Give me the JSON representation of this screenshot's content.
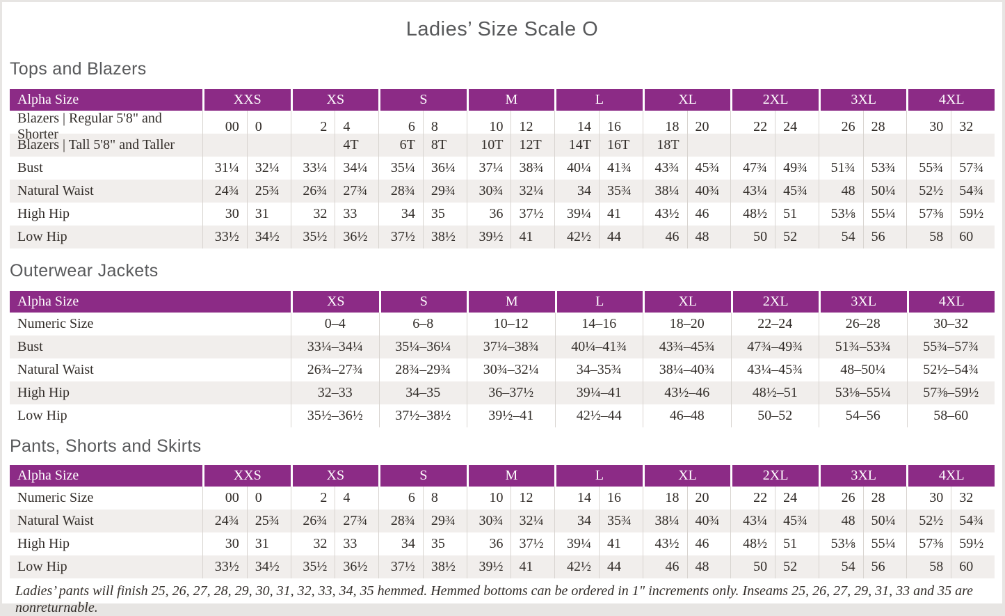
{
  "page": {
    "title": "Ladies’ Size Scale O",
    "footnote": "Ladies’ pants will finish 25, 26, 27, 28, 29, 30, 31, 32, 33, 34, 35 hemmed. Hemmed bottoms can be ordered in 1\" increments only. Inseams 25, 26, 27, 29, 31, 33 and 35 are nonreturnable."
  },
  "colors": {
    "purple": "#8c2b86",
    "stripe": "#f1eeec",
    "line": "#d8d4d0",
    "text": "#332e2a",
    "heading": "#58595b"
  },
  "tables": [
    {
      "section_title": "Tops and Blazers",
      "header_label": "Alpha Size",
      "paired": true,
      "sizes": [
        "XXS",
        "XS",
        "S",
        "M",
        "L",
        "XL",
        "2XL",
        "3XL",
        "4XL"
      ],
      "rows": [
        {
          "label": "Blazers | Regular 5'8\" and Shorter",
          "values": [
            [
              "00",
              "0"
            ],
            [
              "2",
              "4"
            ],
            [
              "6",
              "8"
            ],
            [
              "10",
              "12"
            ],
            [
              "14",
              "16"
            ],
            [
              "18",
              "20"
            ],
            [
              "22",
              "24"
            ],
            [
              "26",
              "28"
            ],
            [
              "30",
              "32"
            ]
          ]
        },
        {
          "label": "Blazers | Tall 5'8\" and Taller",
          "values": [
            [
              "",
              ""
            ],
            [
              "",
              "4T"
            ],
            [
              "6T",
              "8T"
            ],
            [
              "10T",
              "12T"
            ],
            [
              "14T",
              "16T"
            ],
            [
              "18T",
              ""
            ],
            [
              "",
              ""
            ],
            [
              "",
              ""
            ],
            [
              "",
              ""
            ]
          ]
        },
        {
          "label": "Bust",
          "values": [
            [
              "31¼",
              "32¼"
            ],
            [
              "33¼",
              "34¼"
            ],
            [
              "35¼",
              "36¼"
            ],
            [
              "37¼",
              "38¾"
            ],
            [
              "40¼",
              "41¾"
            ],
            [
              "43¾",
              "45¾"
            ],
            [
              "47¾",
              "49¾"
            ],
            [
              "51¾",
              "53¾"
            ],
            [
              "55¾",
              "57¾"
            ]
          ]
        },
        {
          "label": "Natural Waist",
          "values": [
            [
              "24¾",
              "25¾"
            ],
            [
              "26¾",
              "27¾"
            ],
            [
              "28¾",
              "29¾"
            ],
            [
              "30¾",
              "32¼"
            ],
            [
              "34",
              "35¾"
            ],
            [
              "38¼",
              "40¾"
            ],
            [
              "43¼",
              "45¾"
            ],
            [
              "48",
              "50¼"
            ],
            [
              "52½",
              "54¾"
            ]
          ]
        },
        {
          "label": "High Hip",
          "values": [
            [
              "30",
              "31"
            ],
            [
              "32",
              "33"
            ],
            [
              "34",
              "35"
            ],
            [
              "36",
              "37½"
            ],
            [
              "39¼",
              "41"
            ],
            [
              "43½",
              "46"
            ],
            [
              "48½",
              "51"
            ],
            [
              "53⅛",
              "55¼"
            ],
            [
              "57⅜",
              "59½"
            ]
          ]
        },
        {
          "label": "Low Hip",
          "values": [
            [
              "33½",
              "34½"
            ],
            [
              "35½",
              "36½"
            ],
            [
              "37½",
              "38½"
            ],
            [
              "39½",
              "41"
            ],
            [
              "42½",
              "44"
            ],
            [
              "46",
              "48"
            ],
            [
              "50",
              "52"
            ],
            [
              "54",
              "56"
            ],
            [
              "58",
              "60"
            ]
          ]
        }
      ]
    },
    {
      "section_title": "Outerwear Jackets",
      "header_label": "Alpha Size",
      "paired": false,
      "sizes": [
        "XS",
        "S",
        "M",
        "L",
        "XL",
        "2XL",
        "3XL",
        "4XL"
      ],
      "rows": [
        {
          "label": "Numeric Size",
          "values": [
            "0–4",
            "6–8",
            "10–12",
            "14–16",
            "18–20",
            "22–24",
            "26–28",
            "30–32"
          ]
        },
        {
          "label": "Bust",
          "values": [
            "33¼–34¼",
            "35¼–36¼",
            "37¼–38¾",
            "40¼–41¾",
            "43¾–45¾",
            "47¾–49¾",
            "51¾–53¾",
            "55¾–57¾"
          ]
        },
        {
          "label": "Natural Waist",
          "values": [
            "26¾–27¾",
            "28¾–29¾",
            "30¾–32¼",
            "34–35¾",
            "38¼–40¾",
            "43¼–45¾",
            "48–50¼",
            "52½–54¾"
          ]
        },
        {
          "label": "High Hip",
          "values": [
            "32–33",
            "34–35",
            "36–37½",
            "39¼–41",
            "43½–46",
            "48½–51",
            "53⅛–55¼",
            "57⅜–59½"
          ]
        },
        {
          "label": "Low Hip",
          "values": [
            "35½–36½",
            "37½–38½",
            "39½–41",
            "42½–44",
            "46–48",
            "50–52",
            "54–56",
            "58–60"
          ]
        }
      ]
    },
    {
      "section_title": "Pants, Shorts and Skirts",
      "header_label": "Alpha Size",
      "paired": true,
      "sizes": [
        "XXS",
        "XS",
        "S",
        "M",
        "L",
        "XL",
        "2XL",
        "3XL",
        "4XL"
      ],
      "rows": [
        {
          "label": "Numeric Size",
          "values": [
            [
              "00",
              "0"
            ],
            [
              "2",
              "4"
            ],
            [
              "6",
              "8"
            ],
            [
              "10",
              "12"
            ],
            [
              "14",
              "16"
            ],
            [
              "18",
              "20"
            ],
            [
              "22",
              "24"
            ],
            [
              "26",
              "28"
            ],
            [
              "30",
              "32"
            ]
          ]
        },
        {
          "label": "Natural Waist",
          "values": [
            [
              "24¾",
              "25¾"
            ],
            [
              "26¾",
              "27¾"
            ],
            [
              "28¾",
              "29¾"
            ],
            [
              "30¾",
              "32¼"
            ],
            [
              "34",
              "35¾"
            ],
            [
              "38¼",
              "40¾"
            ],
            [
              "43¼",
              "45¾"
            ],
            [
              "48",
              "50¼"
            ],
            [
              "52½",
              "54¾"
            ]
          ]
        },
        {
          "label": "High Hip",
          "values": [
            [
              "30",
              "31"
            ],
            [
              "32",
              "33"
            ],
            [
              "34",
              "35"
            ],
            [
              "36",
              "37½"
            ],
            [
              "39¼",
              "41"
            ],
            [
              "43½",
              "46"
            ],
            [
              "48½",
              "51"
            ],
            [
              "53⅛",
              "55¼"
            ],
            [
              "57⅜",
              "59½"
            ]
          ]
        },
        {
          "label": "Low Hip",
          "values": [
            [
              "33½",
              "34½"
            ],
            [
              "35½",
              "36½"
            ],
            [
              "37½",
              "38½"
            ],
            [
              "39½",
              "41"
            ],
            [
              "42½",
              "44"
            ],
            [
              "46",
              "48"
            ],
            [
              "50",
              "52"
            ],
            [
              "54",
              "56"
            ],
            [
              "58",
              "60"
            ]
          ]
        }
      ]
    }
  ]
}
